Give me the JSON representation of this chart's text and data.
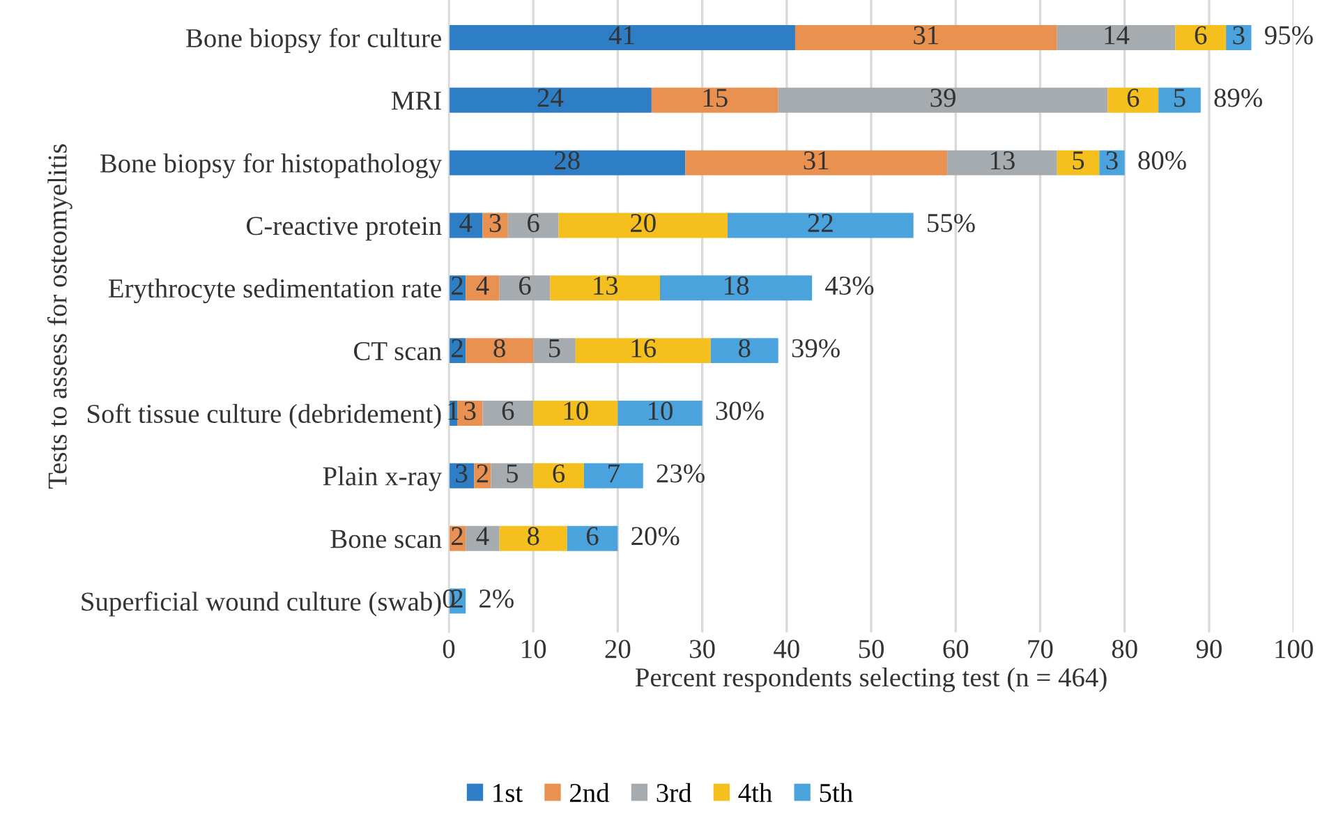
{
  "chart_data": {
    "type": "bar",
    "orientation": "horizontal",
    "stacked": true,
    "xlabel": "Percent respondents selecting test (n = 464)",
    "ylabel": "Tests to assess for osteomyelitis",
    "categories": [
      "Bone biopsy for culture",
      "MRI",
      "Bone biopsy for histopathology",
      "C-reactive protein",
      "Erythrocyte sedimentation rate",
      "CT scan",
      "Soft tissue culture (debridement)",
      "Plain x-ray",
      "Bone scan",
      "Superficial wound culture (swab)"
    ],
    "series": [
      {
        "name": "1st",
        "color": "#2e7ec6",
        "values": [
          41,
          24,
          28,
          4,
          2,
          2,
          1,
          3,
          0,
          0
        ],
        "value_labels": [
          "41",
          "24",
          "28",
          "4",
          "2",
          "2",
          "1",
          "3",
          null,
          "0"
        ]
      },
      {
        "name": "2nd",
        "color": "#e89150",
        "values": [
          31,
          15,
          31,
          3,
          4,
          8,
          3,
          2,
          2,
          0
        ],
        "value_labels": [
          "31",
          "15",
          "31",
          "3",
          "4",
          "8",
          "3",
          "2",
          "2",
          null
        ]
      },
      {
        "name": "3rd",
        "color": "#a6abb0",
        "values": [
          14,
          39,
          13,
          6,
          6,
          5,
          6,
          5,
          4,
          0
        ],
        "value_labels": [
          "14",
          "39",
          "13",
          "6",
          "6",
          "5",
          "6",
          "5",
          "4",
          null
        ]
      },
      {
        "name": "4th",
        "color": "#f5c01e",
        "values": [
          6,
          6,
          5,
          20,
          13,
          16,
          10,
          6,
          8,
          0
        ],
        "value_labels": [
          "6",
          "6",
          "5",
          "20",
          "13",
          "16",
          "10",
          "6",
          "8",
          null
        ]
      },
      {
        "name": "5th",
        "color": "#4ba3dd",
        "values": [
          3,
          5,
          3,
          22,
          18,
          8,
          10,
          7,
          6,
          2
        ],
        "value_labels": [
          "3",
          "5",
          "3",
          "22",
          "18",
          "8",
          "10",
          "7",
          "6",
          "2"
        ]
      }
    ],
    "totals": [
      "95%",
      "89%",
      "80%",
      "55%",
      "43%",
      "39%",
      "30%",
      "23%",
      "20%",
      "2%"
    ],
    "xlim": [
      0,
      100
    ],
    "xticks": [
      0,
      10,
      20,
      30,
      40,
      50,
      60,
      70,
      80,
      90,
      100
    ],
    "grid": "x",
    "legend": "bottom"
  }
}
